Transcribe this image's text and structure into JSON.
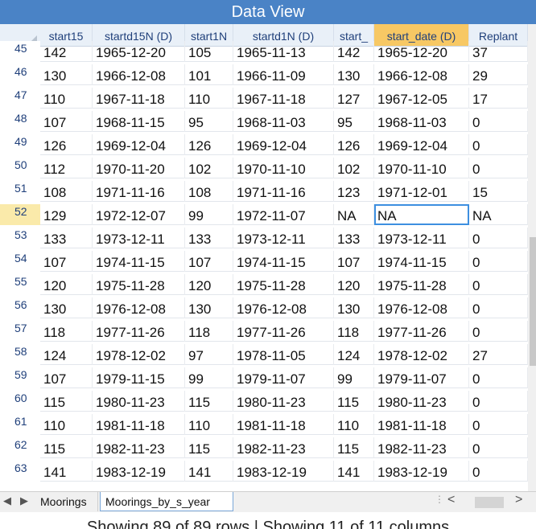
{
  "window": {
    "title": "Data View"
  },
  "columns": [
    "start15",
    "startd15N (D)",
    "start1N",
    "startd1N (D)",
    "start_",
    "start_date (D)",
    "Replant"
  ],
  "selected_column": "start_date (D)",
  "rows": [
    {
      "n": "45",
      "c": [
        "142",
        "1965-12-20",
        "105",
        "1965-11-13",
        "142",
        "1965-12-20",
        "37"
      ]
    },
    {
      "n": "46",
      "c": [
        "130",
        "1966-12-08",
        "101",
        "1966-11-09",
        "130",
        "1966-12-08",
        "29"
      ]
    },
    {
      "n": "47",
      "c": [
        "110",
        "1967-11-18",
        "110",
        "1967-11-18",
        "127",
        "1967-12-05",
        "17"
      ]
    },
    {
      "n": "48",
      "c": [
        "107",
        "1968-11-15",
        "95",
        "1968-11-03",
        "95",
        "1968-11-03",
        "0"
      ]
    },
    {
      "n": "49",
      "c": [
        "126",
        "1969-12-04",
        "126",
        "1969-12-04",
        "126",
        "1969-12-04",
        "0"
      ]
    },
    {
      "n": "50",
      "c": [
        "112",
        "1970-11-20",
        "102",
        "1970-11-10",
        "102",
        "1970-11-10",
        "0"
      ]
    },
    {
      "n": "51",
      "c": [
        "108",
        "1971-11-16",
        "108",
        "1971-11-16",
        "123",
        "1971-12-01",
        "15"
      ]
    },
    {
      "n": "52",
      "c": [
        "129",
        "1972-12-07",
        "99",
        "1972-11-07",
        "NA",
        "NA",
        "NA"
      ]
    },
    {
      "n": "53",
      "c": [
        "133",
        "1973-12-11",
        "133",
        "1973-12-11",
        "133",
        "1973-12-11",
        "0"
      ]
    },
    {
      "n": "54",
      "c": [
        "107",
        "1974-11-15",
        "107",
        "1974-11-15",
        "107",
        "1974-11-15",
        "0"
      ]
    },
    {
      "n": "55",
      "c": [
        "120",
        "1975-11-28",
        "120",
        "1975-11-28",
        "120",
        "1975-11-28",
        "0"
      ]
    },
    {
      "n": "56",
      "c": [
        "130",
        "1976-12-08",
        "130",
        "1976-12-08",
        "130",
        "1976-12-08",
        "0"
      ]
    },
    {
      "n": "57",
      "c": [
        "118",
        "1977-11-26",
        "118",
        "1977-11-26",
        "118",
        "1977-11-26",
        "0"
      ]
    },
    {
      "n": "58",
      "c": [
        "124",
        "1978-12-02",
        "97",
        "1978-11-05",
        "124",
        "1978-12-02",
        "27"
      ]
    },
    {
      "n": "59",
      "c": [
        "107",
        "1979-11-15",
        "99",
        "1979-11-07",
        "99",
        "1979-11-07",
        "0"
      ]
    },
    {
      "n": "60",
      "c": [
        "115",
        "1980-11-23",
        "115",
        "1980-11-23",
        "115",
        "1980-11-23",
        "0"
      ]
    },
    {
      "n": "61",
      "c": [
        "110",
        "1981-11-18",
        "110",
        "1981-11-18",
        "110",
        "1981-11-18",
        "0"
      ]
    },
    {
      "n": "62",
      "c": [
        "115",
        "1982-11-23",
        "115",
        "1982-11-23",
        "115",
        "1982-11-23",
        "0"
      ]
    },
    {
      "n": "63",
      "c": [
        "141",
        "1983-12-19",
        "141",
        "1983-12-19",
        "141",
        "1983-12-19",
        "0"
      ]
    }
  ],
  "current_row": "52",
  "focused_cell": {
    "row": "52",
    "col": "start_date (D)"
  },
  "sheet_tabs": [
    "Moorings",
    "Moorings_by_s_year"
  ],
  "active_tab": "Moorings_by_s_year",
  "nav": {
    "prev": "◀",
    "next": "▶",
    "scroll_left": "<",
    "scroll_right": ">"
  },
  "status": "Showing 89 of 89 rows | Showing 11 of 11 columns",
  "colors": {
    "title_bar": "#4a83c6",
    "header_bg": "#e9f0f8",
    "selected_header": "#f7c864",
    "current_row_num": "#faeaaa",
    "focus_border": "#3d8fe0"
  }
}
